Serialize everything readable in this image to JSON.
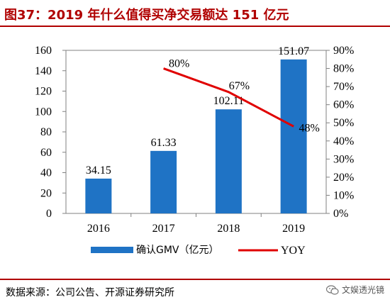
{
  "title": "图37：2019 年什么值得买净交易额达 151 亿元",
  "source": "数据来源：公司公告、开源证券研究所",
  "watermark": "文娱透光镜",
  "colors": {
    "title": "#b00000",
    "bar": "#1f73c5",
    "line": "#e00000"
  },
  "chart_data": {
    "type": "bar",
    "categories": [
      "2016",
      "2017",
      "2018",
      "2019"
    ],
    "series": [
      {
        "name": "确认GMV（亿元）",
        "type": "bar",
        "axis": "left",
        "values": [
          34.15,
          61.33,
          102.11,
          151.07
        ],
        "labels": [
          "34.15",
          "61.33",
          "102.11",
          "151.07"
        ]
      },
      {
        "name": "YOY",
        "type": "line",
        "axis": "right",
        "values": [
          null,
          80,
          67,
          48
        ],
        "labels": [
          "",
          "80%",
          "67%",
          "48%"
        ]
      }
    ],
    "y_left": {
      "lim": [
        0,
        160
      ],
      "ticks": [
        "0",
        "20",
        "40",
        "60",
        "80",
        "100",
        "120",
        "140",
        "160"
      ]
    },
    "y_right": {
      "lim": [
        0,
        90
      ],
      "ticks": [
        "0%",
        "10%",
        "20%",
        "30%",
        "40%",
        "50%",
        "60%",
        "70%",
        "80%",
        "90%"
      ]
    },
    "legend_position": "bottom",
    "grid": false
  }
}
